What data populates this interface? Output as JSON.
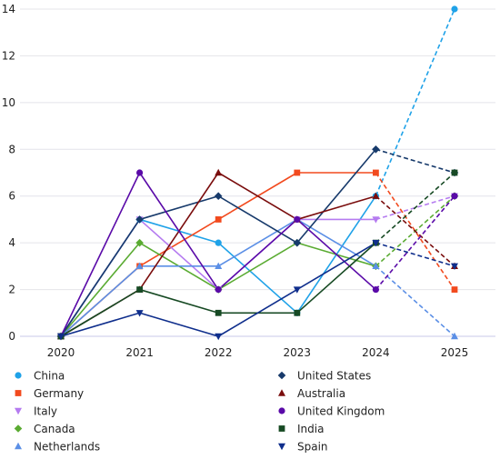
{
  "chart_data": {
    "type": "line",
    "title": "",
    "xlabel": "",
    "ylabel": "",
    "x": [
      "2020",
      "2021",
      "2022",
      "2023",
      "2024",
      "2025"
    ],
    "ylim": [
      0,
      14
    ],
    "yticks": [
      0,
      2,
      4,
      6,
      8,
      10,
      12,
      14
    ],
    "grid": "horizontal",
    "legend_position": "bottom",
    "projection_style": "last segment dashed",
    "series": [
      {
        "name": "China",
        "color": "#1fa2e8",
        "marker": "circle",
        "values": [
          0,
          5,
          4,
          1,
          6,
          14
        ]
      },
      {
        "name": "Germany",
        "color": "#f24a1e",
        "marker": "square",
        "values": [
          0,
          3,
          5,
          7,
          7,
          2
        ]
      },
      {
        "name": "Italy",
        "color": "#b57bf0",
        "marker": "triangle-down",
        "values": [
          0,
          5,
          2,
          5,
          5,
          6
        ]
      },
      {
        "name": "Canada",
        "color": "#5aab32",
        "marker": "diamond",
        "values": [
          0,
          4,
          2,
          4,
          3,
          6
        ]
      },
      {
        "name": "Netherlands",
        "color": "#5b8fe6",
        "marker": "triangle-up",
        "values": [
          0,
          3,
          3,
          5,
          3,
          0
        ]
      },
      {
        "name": "United States",
        "color": "#173a6b",
        "marker": "diamond",
        "values": [
          0,
          5,
          6,
          4,
          8,
          7
        ]
      },
      {
        "name": "Australia",
        "color": "#7a0d0d",
        "marker": "triangle-up",
        "values": [
          0,
          2,
          7,
          5,
          6,
          3
        ]
      },
      {
        "name": "United Kingdom",
        "color": "#5a0aa8",
        "marker": "circle",
        "values": [
          0,
          7,
          2,
          5,
          2,
          6
        ]
      },
      {
        "name": "India",
        "color": "#174a24",
        "marker": "square",
        "values": [
          0,
          2,
          1,
          1,
          4,
          7
        ]
      },
      {
        "name": "Spain",
        "color": "#0f2e8c",
        "marker": "triangle-down",
        "values": [
          0,
          1,
          0,
          2,
          4,
          3
        ]
      }
    ]
  }
}
